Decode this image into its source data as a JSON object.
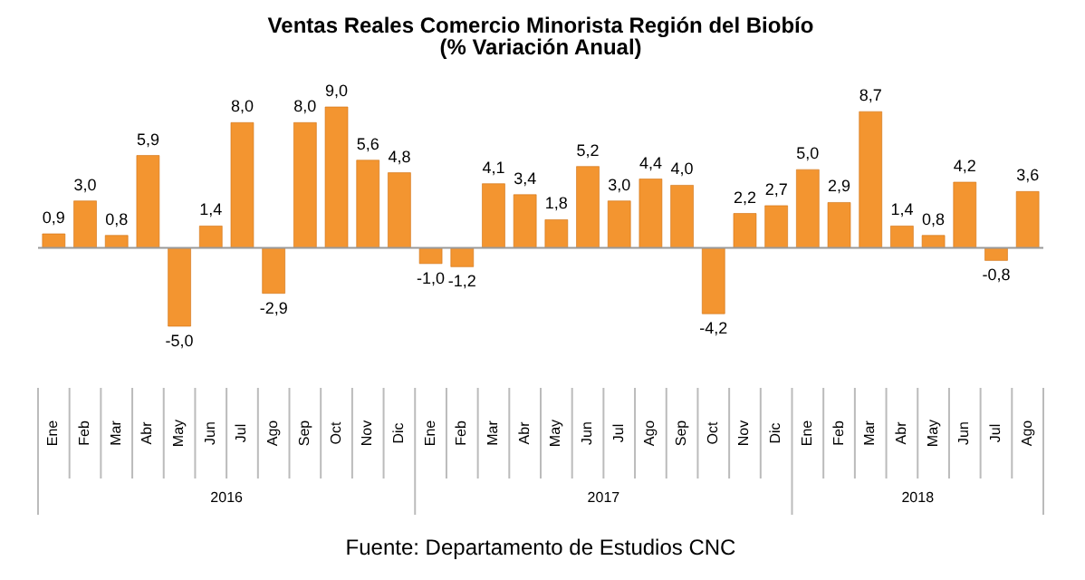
{
  "chart_data": {
    "type": "bar",
    "title": "Ventas Reales Comercio Minorista Región del Biobío",
    "subtitle": "(% Variación Anual)",
    "categories": [
      "Ene",
      "Feb",
      "Mar",
      "Abr",
      "May",
      "Jun",
      "Jul",
      "Ago",
      "Sep",
      "Oct",
      "Nov",
      "Dic",
      "Ene",
      "Feb",
      "Mar",
      "Abr",
      "May",
      "Jun",
      "Jul",
      "Ago",
      "Sep",
      "Oct",
      "Nov",
      "Dic",
      "Ene",
      "Feb",
      "Mar",
      "Abr",
      "May",
      "Jun",
      "Jul",
      "Ago"
    ],
    "values": [
      0.9,
      3.0,
      0.8,
      5.9,
      -5.0,
      1.4,
      8.0,
      -2.9,
      8.0,
      9.0,
      5.6,
      4.8,
      -1.0,
      -1.2,
      4.1,
      3.4,
      1.8,
      5.2,
      3.0,
      4.4,
      4.0,
      -4.2,
      2.2,
      2.7,
      5.0,
      2.9,
      8.7,
      1.4,
      0.8,
      4.2,
      -0.8,
      3.6
    ],
    "value_labels": [
      "0,9",
      "3,0",
      "0,8",
      "5,9",
      "-5,0",
      "1,4",
      "8,0",
      "-2,9",
      "8,0",
      "9,0",
      "5,6",
      "4,8",
      "-1,0",
      "-1,2",
      "4,1",
      "3,4",
      "1,8",
      "5,2",
      "3,0",
      "4,4",
      "4,0",
      "-4,2",
      "2,2",
      "2,7",
      "5,0",
      "2,9",
      "8,7",
      "1,4",
      "0,8",
      "4,2",
      "-0,8",
      "3,6"
    ],
    "color": "#f39530",
    "tick_labels": "x",
    "grid": false,
    "annotations": [
      "2016",
      "2017",
      "2018",
      "Fuente: Departamento de Estudios CNC"
    ]
  }
}
